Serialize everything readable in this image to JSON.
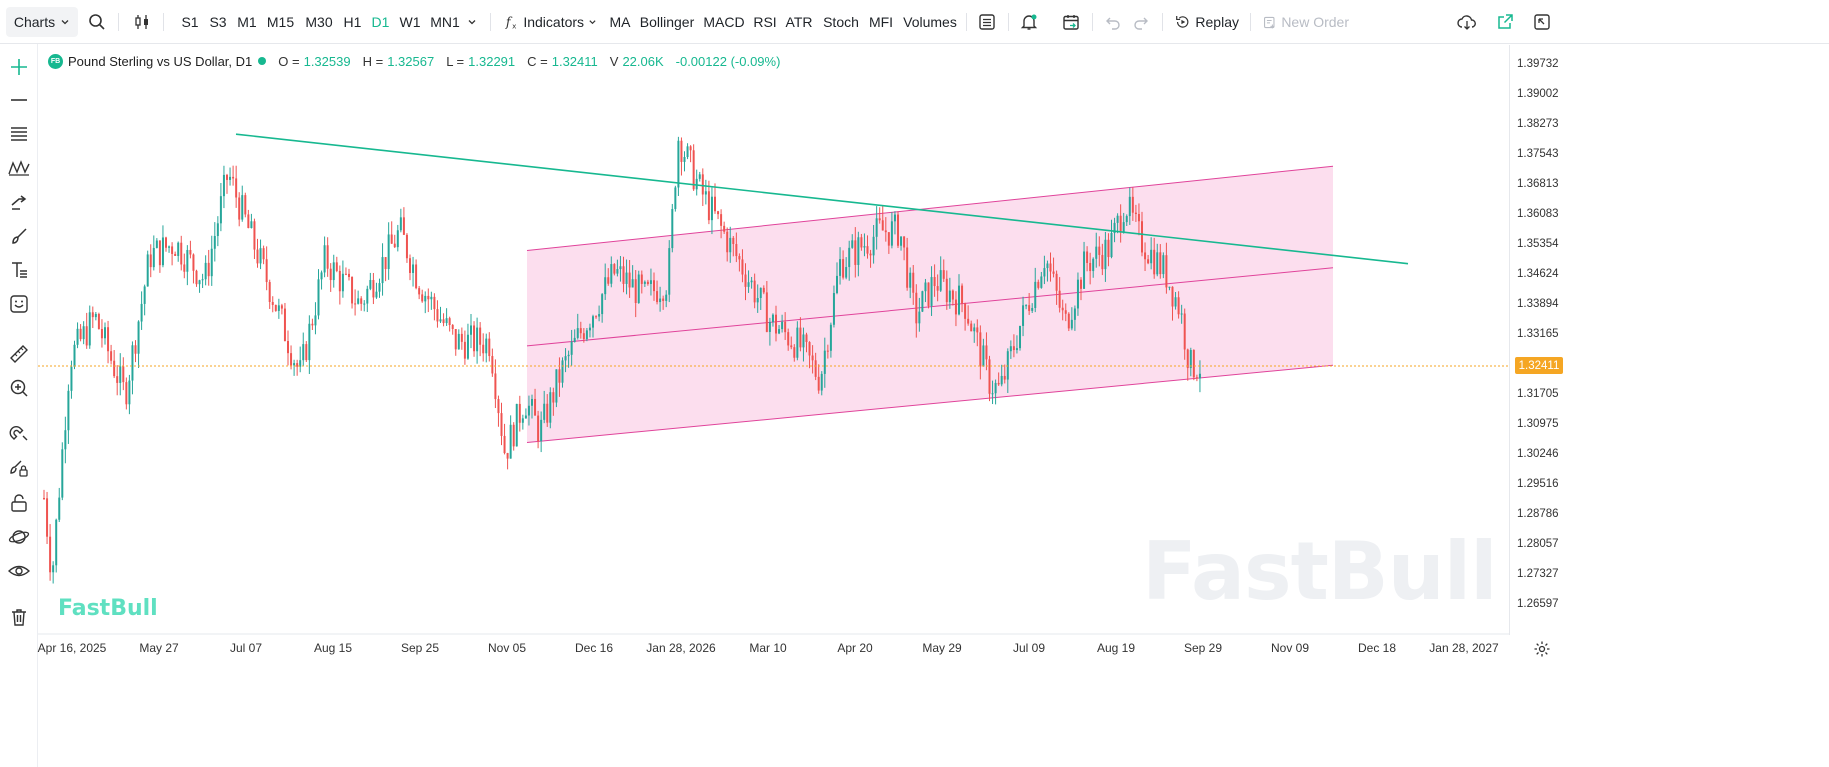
{
  "toolbar": {
    "charts_label": "Charts",
    "timeframes": [
      "S1",
      "S3",
      "M1",
      "M15",
      "M30",
      "H1",
      "D1",
      "W1",
      "MN1"
    ],
    "active_timeframe": "D1",
    "indicators_label": "Indicators",
    "indicator_shortcuts": [
      "MA",
      "Bollinger",
      "MACD",
      "RSI",
      "ATR",
      "Stoch",
      "MFI",
      "Volumes"
    ],
    "replay_label": "Replay",
    "new_order_label": "New Order"
  },
  "legend": {
    "badge": "FB",
    "symbol_title": "Pound Sterling vs US Dollar, D1",
    "open_key": "O =",
    "open": "1.32539",
    "high_key": "H =",
    "high": "1.32567",
    "low_key": "L =",
    "low": "1.32291",
    "close_key": "C =",
    "close": "1.32411",
    "volume_key": "V",
    "volume": "22.06K",
    "change": "-0.00122 (-0.09%)"
  },
  "price_axis": [
    "1.39732",
    "1.39002",
    "1.38273",
    "1.37543",
    "1.36813",
    "1.36083",
    "1.35354",
    "1.34624",
    "1.33894",
    "1.33165",
    "1.32411",
    "1.31705",
    "1.30975",
    "1.30246",
    "1.29516",
    "1.28786",
    "1.28057",
    "1.27327",
    "1.26597"
  ],
  "current_price": "1.32411",
  "time_axis": [
    "Apr 16, 2025",
    "May 27",
    "Jul 07",
    "Aug 15",
    "Sep 25",
    "Nov 05",
    "Dec 16",
    "Jan 28, 2026",
    "Mar 10",
    "Apr 20",
    "May 29",
    "Jul 09",
    "Aug 19",
    "Sep 29",
    "Nov 09",
    "Dec 18",
    "Jan 28, 2027"
  ],
  "watermark": "FastBull",
  "colors": {
    "up": "#26a69a",
    "down": "#ef5350",
    "trendline": "#17b890",
    "channel": "#e0439a",
    "channel_fill": "#fbd3e8",
    "current_price": "#f5a623"
  },
  "chart_data": {
    "type": "candlestick",
    "title": "Pound Sterling vs US Dollar, D1",
    "ylim": [
      1.262,
      1.401
    ],
    "last_bar": {
      "open": 1.32539,
      "high": 1.32567,
      "low": 1.32291,
      "close": 1.32411
    },
    "trendline": {
      "from": {
        "x": "Jul 07",
        "y": 1.3805
      },
      "to": {
        "x": "Dec 18",
        "y": 1.349
      }
    },
    "channel": {
      "upper": {
        "from": 1.3522,
        "to": 1.3727
      },
      "middle": {
        "from": 1.329,
        "to": 1.348
      },
      "lower": {
        "from": 1.3055,
        "to": 1.3243
      },
      "x_range": [
        "Nov 05",
        "Nov 09"
      ]
    }
  }
}
